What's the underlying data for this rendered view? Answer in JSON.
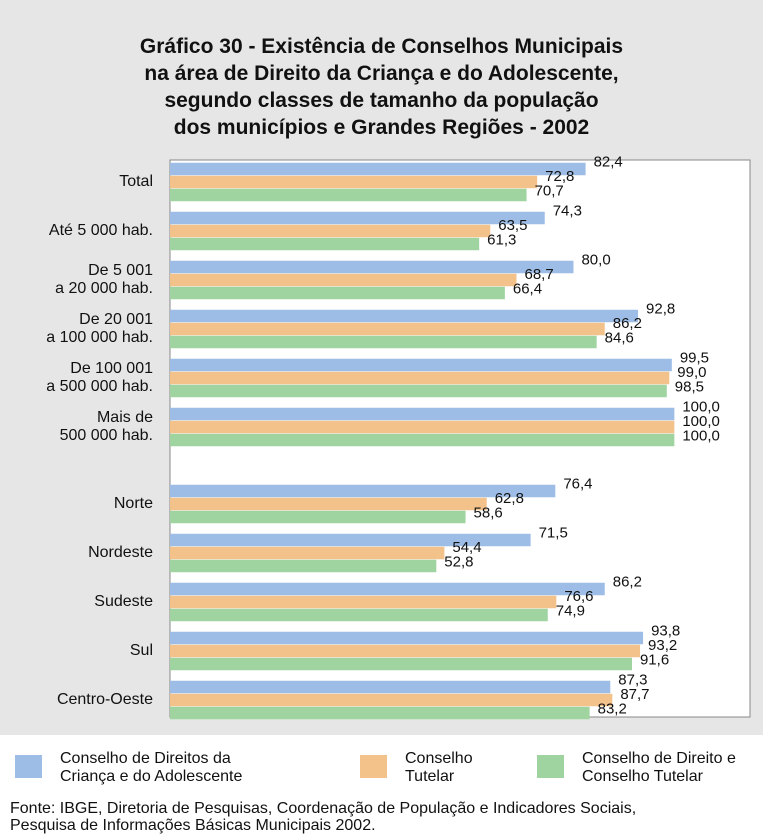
{
  "chart_data": {
    "type": "bar",
    "title": "Gráfico 30 - Existência de Conselhos Municipais\nna área de Direito da Criança e do Adolescente,\nsegundo classes de tamanho da população\ndos municípios e Grandes Regiões - 2002",
    "categories": [
      "Total",
      "Até 5 000 hab.",
      "De 5 001\na 20 000 hab.",
      "De 20 001\na 100 000 hab.",
      "De 100 001\na 500 000 hab.",
      "Mais de\n500 000 hab.",
      "Norte",
      "Nordeste",
      "Sudeste",
      "Sul",
      "Centro-Oeste"
    ],
    "series": [
      {
        "name": "Conselho de Direitos da\nCriança e do Adolescente",
        "color": "#9dbde6",
        "values": [
          82.4,
          74.3,
          80.0,
          92.8,
          99.5,
          100.0,
          76.4,
          71.5,
          86.2,
          93.8,
          87.3
        ],
        "value_labels": [
          "82,4",
          "74,3",
          "80,0",
          "92,8",
          "99,5",
          "100,0",
          "76,4",
          "71,5",
          "86,2",
          "93,8",
          "87,3"
        ]
      },
      {
        "name": "Conselho\nTutelar",
        "color": "#f2c28a",
        "values": [
          72.8,
          63.5,
          68.7,
          86.2,
          99.0,
          100.0,
          62.8,
          54.4,
          76.6,
          93.2,
          87.7
        ],
        "value_labels": [
          "72,8",
          "63,5",
          "68,7",
          "86,2",
          "99,0",
          "100,0",
          "62,8",
          "54,4",
          "76,6",
          "93,2",
          "87,7"
        ]
      },
      {
        "name": "Conselho de Direito e\nConselho Tutelar",
        "color": "#9fd39f",
        "values": [
          70.7,
          61.3,
          66.4,
          84.6,
          98.5,
          100.0,
          58.6,
          52.8,
          74.9,
          91.6,
          83.2
        ],
        "value_labels": [
          "70,7",
          "61,3",
          "66,4",
          "84,6",
          "98,5",
          "100,0",
          "58,6",
          "52,8",
          "74,9",
          "91,6",
          "83,2"
        ]
      }
    ],
    "xlim": [
      0,
      115
    ],
    "source": "Fonte: IBGE, Diretoria de Pesquisas, Coordenação de População e Indicadores Sociais,\nPesquisa de Informações Básicas Municipais 2002."
  }
}
